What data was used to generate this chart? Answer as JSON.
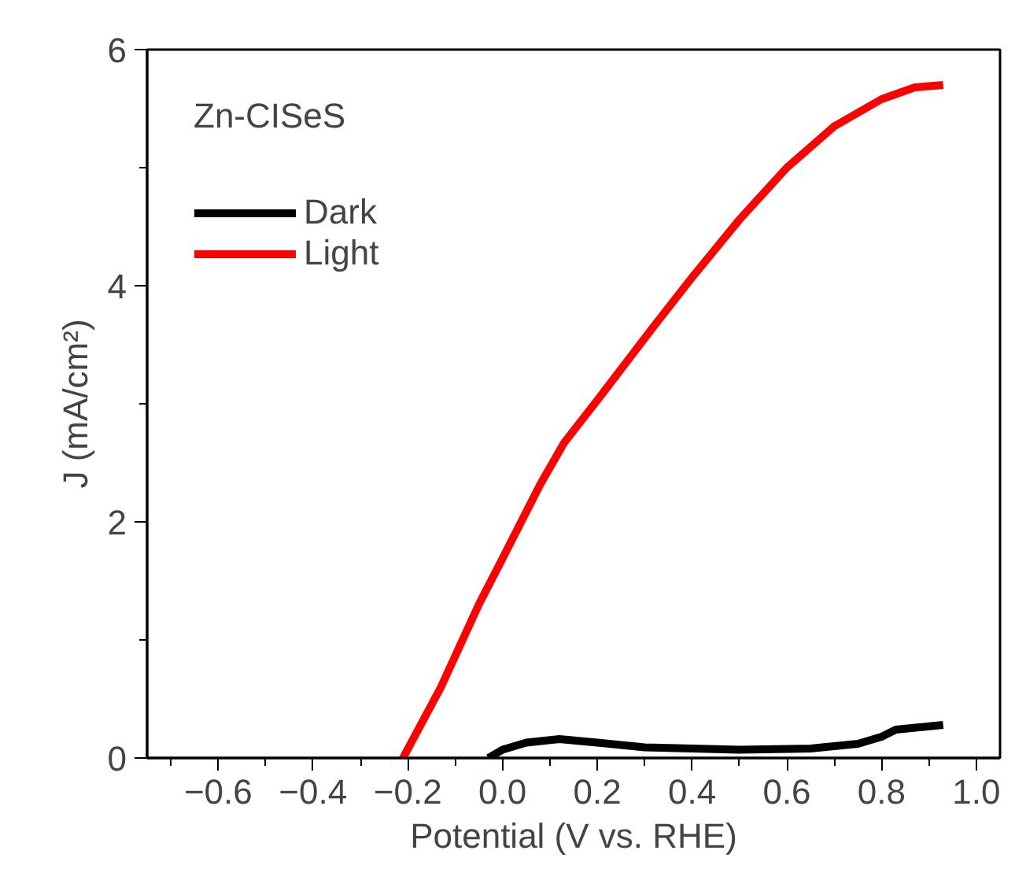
{
  "chart_data": {
    "type": "line",
    "xlabel": "Potential (V vs. RHE)",
    "ylabel": "J (mA/cm²)",
    "legend_title": "Zn-CISeS",
    "xlim": [
      -0.75,
      1.05
    ],
    "ylim": [
      0,
      6
    ],
    "xticks": [
      -0.6,
      -0.4,
      -0.2,
      {
        "value": 0,
        "label": "0.0"
      },
      0.2,
      0.4,
      0.6,
      0.8,
      {
        "value": 1,
        "label": "1.0"
      },
      {
        "value": -0.7,
        "label": null
      },
      {
        "value": -0.5,
        "label": null
      },
      {
        "value": -0.3,
        "label": null
      },
      {
        "value": -0.1,
        "label": null
      },
      {
        "value": 0.1,
        "label": null
      },
      {
        "value": 0.3,
        "label": null
      },
      {
        "value": 0.5,
        "label": null
      },
      {
        "value": 0.7,
        "label": null
      },
      {
        "value": 0.9,
        "label": null
      }
    ],
    "yticks": [
      0,
      2,
      4,
      6,
      {
        "value": 1,
        "label": null
      },
      {
        "value": 3,
        "label": null
      },
      {
        "value": 5,
        "label": null
      }
    ],
    "legend": "top left",
    "grid": false,
    "marker": "none",
    "line_style": "solid",
    "series": [
      {
        "name": "Dark",
        "color": "#000000",
        "x": [
          -0.03,
          0.0,
          0.05,
          0.12,
          0.2,
          0.3,
          0.4,
          0.5,
          0.65,
          0.75,
          0.8,
          0.83,
          0.88,
          0.93
        ],
        "values": [
          0,
          0.07,
          0.13,
          0.16,
          0.13,
          0.09,
          0.08,
          0.07,
          0.08,
          0.12,
          0.18,
          0.24,
          0.26,
          0.28
        ]
      },
      {
        "name": "Light",
        "color": "#ff0000",
        "x": [
          -0.21,
          -0.13,
          -0.05,
          0.0,
          0.08,
          0.13,
          0.2,
          0.32,
          0.4,
          0.5,
          0.6,
          0.7,
          0.8,
          0.87,
          0.93
        ],
        "values": [
          0,
          0.6,
          1.3,
          1.69,
          2.32,
          2.67,
          3.03,
          3.66,
          4.07,
          4.56,
          5.0,
          5.35,
          5.58,
          5.68,
          5.7
        ]
      }
    ]
  }
}
